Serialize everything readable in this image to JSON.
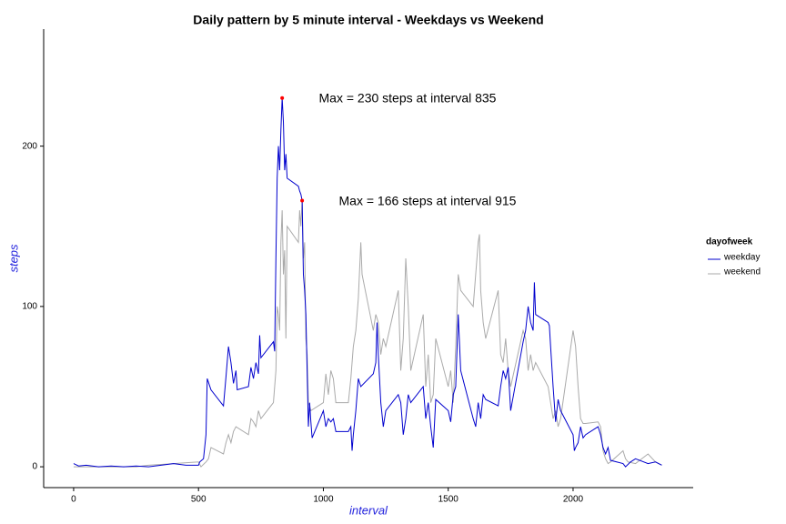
{
  "chart_data": {
    "type": "line",
    "title": "Daily pattern by 5 minute interval - Weekdays vs Weekend",
    "x_label": "interval",
    "y_label": "steps",
    "legend_title": "dayofweek",
    "annotations": [
      "Max = 230 steps at interval 835",
      "Max = 166 steps at interval 915"
    ],
    "max_points": [
      {
        "x": 835,
        "y": 230
      },
      {
        "x": 915,
        "y": 166
      }
    ],
    "series": [
      {
        "name": "weekday",
        "color": "#0000cd",
        "x": [
          0,
          20,
          50,
          100,
          150,
          200,
          250,
          300,
          350,
          400,
          450,
          500,
          505,
          520,
          530,
          535,
          550,
          600,
          610,
          620,
          625,
          630,
          640,
          650,
          655,
          700,
          710,
          720,
          730,
          740,
          745,
          750,
          800,
          805,
          810,
          815,
          820,
          825,
          830,
          835,
          840,
          845,
          850,
          855,
          900,
          905,
          910,
          915,
          920,
          925,
          930,
          935,
          940,
          945,
          950,
          955,
          1000,
          1010,
          1020,
          1030,
          1040,
          1050,
          1100,
          1110,
          1115,
          1120,
          1130,
          1140,
          1150,
          1200,
          1210,
          1215,
          1220,
          1230,
          1240,
          1250,
          1300,
          1310,
          1320,
          1330,
          1340,
          1350,
          1400,
          1410,
          1420,
          1430,
          1440,
          1450,
          1500,
          1510,
          1520,
          1530,
          1540,
          1550,
          1600,
          1610,
          1620,
          1630,
          1640,
          1650,
          1700,
          1710,
          1720,
          1730,
          1740,
          1750,
          1800,
          1810,
          1820,
          1830,
          1840,
          1845,
          1850,
          1900,
          1905,
          1910,
          1920,
          1930,
          1940,
          1950,
          2000,
          2005,
          2010,
          2020,
          2030,
          2040,
          2050,
          2100,
          2110,
          2120,
          2130,
          2140,
          2150,
          2200,
          2210,
          2230,
          2250,
          2300,
          2330,
          2355
        ],
        "values": [
          2,
          0.5,
          1,
          0,
          0.5,
          0,
          0.5,
          0,
          1,
          2,
          1,
          1,
          3,
          5,
          20,
          55,
          48,
          38,
          56,
          75,
          70,
          65,
          52,
          60,
          48,
          50,
          62,
          55,
          65,
          58,
          82,
          68,
          78,
          72,
          130,
          180,
          200,
          185,
          210,
          230,
          215,
          185,
          195,
          180,
          175,
          172,
          170,
          166,
          120,
          110,
          95,
          60,
          25,
          40,
          28,
          18,
          35,
          25,
          30,
          28,
          30,
          22,
          22,
          25,
          10,
          20,
          35,
          55,
          50,
          58,
          65,
          90,
          70,
          40,
          25,
          35,
          45,
          40,
          20,
          30,
          45,
          40,
          50,
          30,
          40,
          25,
          12,
          42,
          35,
          28,
          45,
          50,
          95,
          60,
          30,
          25,
          40,
          30,
          45,
          42,
          38,
          50,
          60,
          55,
          62,
          35,
          78,
          85,
          100,
          90,
          85,
          115,
          95,
          90,
          88,
          75,
          50,
          28,
          42,
          35,
          20,
          10,
          12,
          15,
          25,
          18,
          20,
          25,
          20,
          12,
          8,
          12,
          4,
          2,
          0,
          3,
          5,
          2,
          3,
          1
        ]
      },
      {
        "name": "weekend",
        "color": "#aaaaaa",
        "x": [
          0,
          250,
          300,
          400,
          500,
          510,
          530,
          540,
          550,
          600,
          610,
          620,
          630,
          640,
          650,
          700,
          710,
          720,
          730,
          740,
          750,
          800,
          810,
          815,
          820,
          825,
          830,
          835,
          840,
          845,
          850,
          855,
          900,
          905,
          910,
          915,
          920,
          925,
          930,
          935,
          940,
          950,
          1000,
          1010,
          1020,
          1030,
          1040,
          1050,
          1100,
          1110,
          1120,
          1130,
          1140,
          1150,
          1155,
          1200,
          1210,
          1220,
          1230,
          1240,
          1250,
          1300,
          1310,
          1320,
          1330,
          1340,
          1350,
          1400,
          1410,
          1420,
          1430,
          1440,
          1450,
          1500,
          1510,
          1520,
          1530,
          1540,
          1550,
          1600,
          1610,
          1620,
          1625,
          1630,
          1640,
          1650,
          1700,
          1710,
          1720,
          1730,
          1740,
          1750,
          1800,
          1810,
          1820,
          1830,
          1840,
          1850,
          1900,
          1910,
          1920,
          1930,
          1940,
          1950,
          2000,
          2010,
          2020,
          2030,
          2040,
          2050,
          2100,
          2110,
          2120,
          2130,
          2140,
          2150,
          2200,
          2210,
          2220,
          2250,
          2300,
          2330,
          2355
        ],
        "values": [
          0,
          0,
          1,
          2,
          3,
          0,
          3,
          5,
          12,
          8,
          15,
          20,
          15,
          22,
          25,
          20,
          30,
          28,
          25,
          35,
          30,
          40,
          60,
          100,
          95,
          85,
          140,
          160,
          120,
          135,
          80,
          150,
          140,
          160,
          150,
          166,
          130,
          140,
          80,
          70,
          40,
          35,
          40,
          58,
          45,
          60,
          55,
          40,
          40,
          55,
          75,
          85,
          105,
          140,
          120,
          85,
          95,
          90,
          70,
          80,
          75,
          110,
          60,
          80,
          130,
          100,
          60,
          95,
          50,
          70,
          40,
          45,
          80,
          50,
          60,
          40,
          75,
          120,
          110,
          100,
          120,
          140,
          145,
          110,
          90,
          80,
          110,
          70,
          65,
          80,
          60,
          50,
          85,
          80,
          60,
          70,
          60,
          65,
          50,
          40,
          30,
          35,
          25,
          30,
          85,
          75,
          50,
          30,
          27,
          27,
          28,
          25,
          10,
          5,
          2,
          3,
          10,
          5,
          3,
          2,
          8,
          3,
          1
        ]
      }
    ],
    "xlim": [
      -120,
      2481
    ],
    "xticks": [
      0,
      500,
      1000,
      1500,
      2000
    ],
    "ylim": [
      -13,
      273
    ],
    "yticks": [
      0,
      100,
      200
    ],
    "grid": false,
    "legend": "right"
  }
}
